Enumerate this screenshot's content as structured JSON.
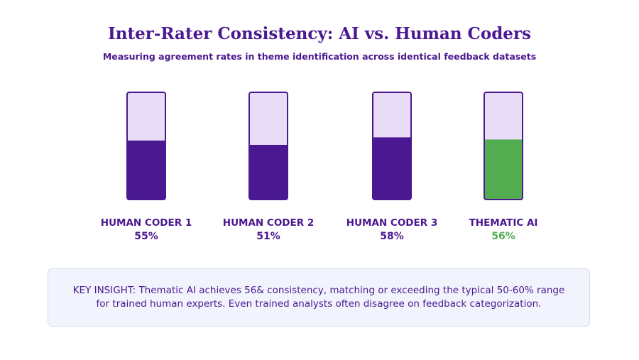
{
  "chart_data": {
    "type": "bar",
    "title": "Inter-Rater Consistency: AI vs. Human Coders",
    "subtitle": "Measuring agreement rates in theme identification across identical feedback datasets",
    "categories": [
      "HUMAN CODER 1",
      "HUMAN CODER 2",
      "HUMAN CODER 3",
      "THEMATIC AI"
    ],
    "values": [
      55,
      51,
      58,
      56
    ],
    "value_labels": [
      "55%",
      "51%",
      "58%",
      "56%"
    ],
    "ylim": [
      0,
      100
    ],
    "colors": {
      "human_fill": "#4a1890",
      "ai_fill": "#52ac50",
      "track": "#e9dcf6",
      "outline": "#4a1890",
      "ai_label": "#52ac50"
    },
    "highlight_index": 3
  },
  "insight": {
    "text": "KEY INSIGHT: Thematic AI achieves 56& consistency, matching or exceeding the typical 50-60% range for trained human experts. Even trained analysts often disagree on feedback categorization."
  }
}
